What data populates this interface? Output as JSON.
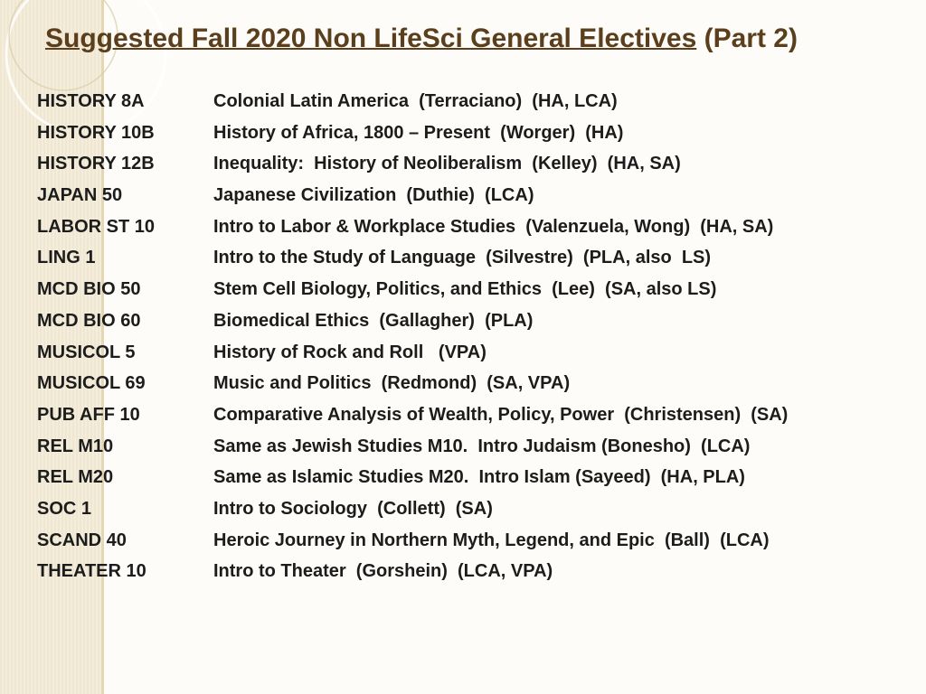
{
  "title": {
    "main": "Suggested Fall 2020 Non LifeSci General Electives",
    "suffix": "(Part 2)"
  },
  "rows": [
    [
      "HISTORY 8A",
      "Colonial Latin America  (Terraciano)  (HA, LCA)"
    ],
    [
      "HISTORY 10B",
      "History of Africa, 1800 – Present  (Worger)  (HA)"
    ],
    [
      "HISTORY 12B",
      "Inequality:  History of Neoliberalism  (Kelley)  (HA, SA)"
    ],
    [
      "JAPAN 50",
      "Japanese Civilization  (Duthie)  (LCA)"
    ],
    [
      "LABOR ST 10",
      "Intro to Labor & Workplace Studies  (Valenzuela, Wong)  (HA, SA)"
    ],
    [
      "LING 1",
      "Intro to the Study of Language  (Silvestre)  (PLA, also  LS)"
    ],
    [
      "MCD BIO 50",
      "Stem Cell Biology, Politics, and Ethics  (Lee)  (SA, also LS)"
    ],
    [
      "MCD BIO 60",
      "Biomedical Ethics  (Gallagher)  (PLA)"
    ],
    [
      "MUSICOL 5",
      "History of Rock and Roll   (VPA)"
    ],
    [
      "MUSICOL 69",
      "Music and Politics  (Redmond)  (SA, VPA)"
    ],
    [
      "PUB AFF 10",
      "Comparative Analysis of Wealth, Policy, Power  (Christensen)  (SA)"
    ],
    [
      "REL M10",
      "Same as Jewish Studies M10.  Intro Judaism (Bonesho)  (LCA)"
    ],
    [
      "REL M20",
      "Same as Islamic Studies M20.  Intro Islam (Sayeed)  (HA, PLA)"
    ],
    [
      "SOC 1",
      "Intro to Sociology  (Collett)  (SA)"
    ],
    [
      "SCAND 40",
      "Heroic Journey in Northern Myth, Legend, and Epic  (Ball)  (LCA)"
    ],
    [
      "THEATER 10",
      "Intro to Theater  (Gorshein)  (LCA, VPA)"
    ]
  ]
}
